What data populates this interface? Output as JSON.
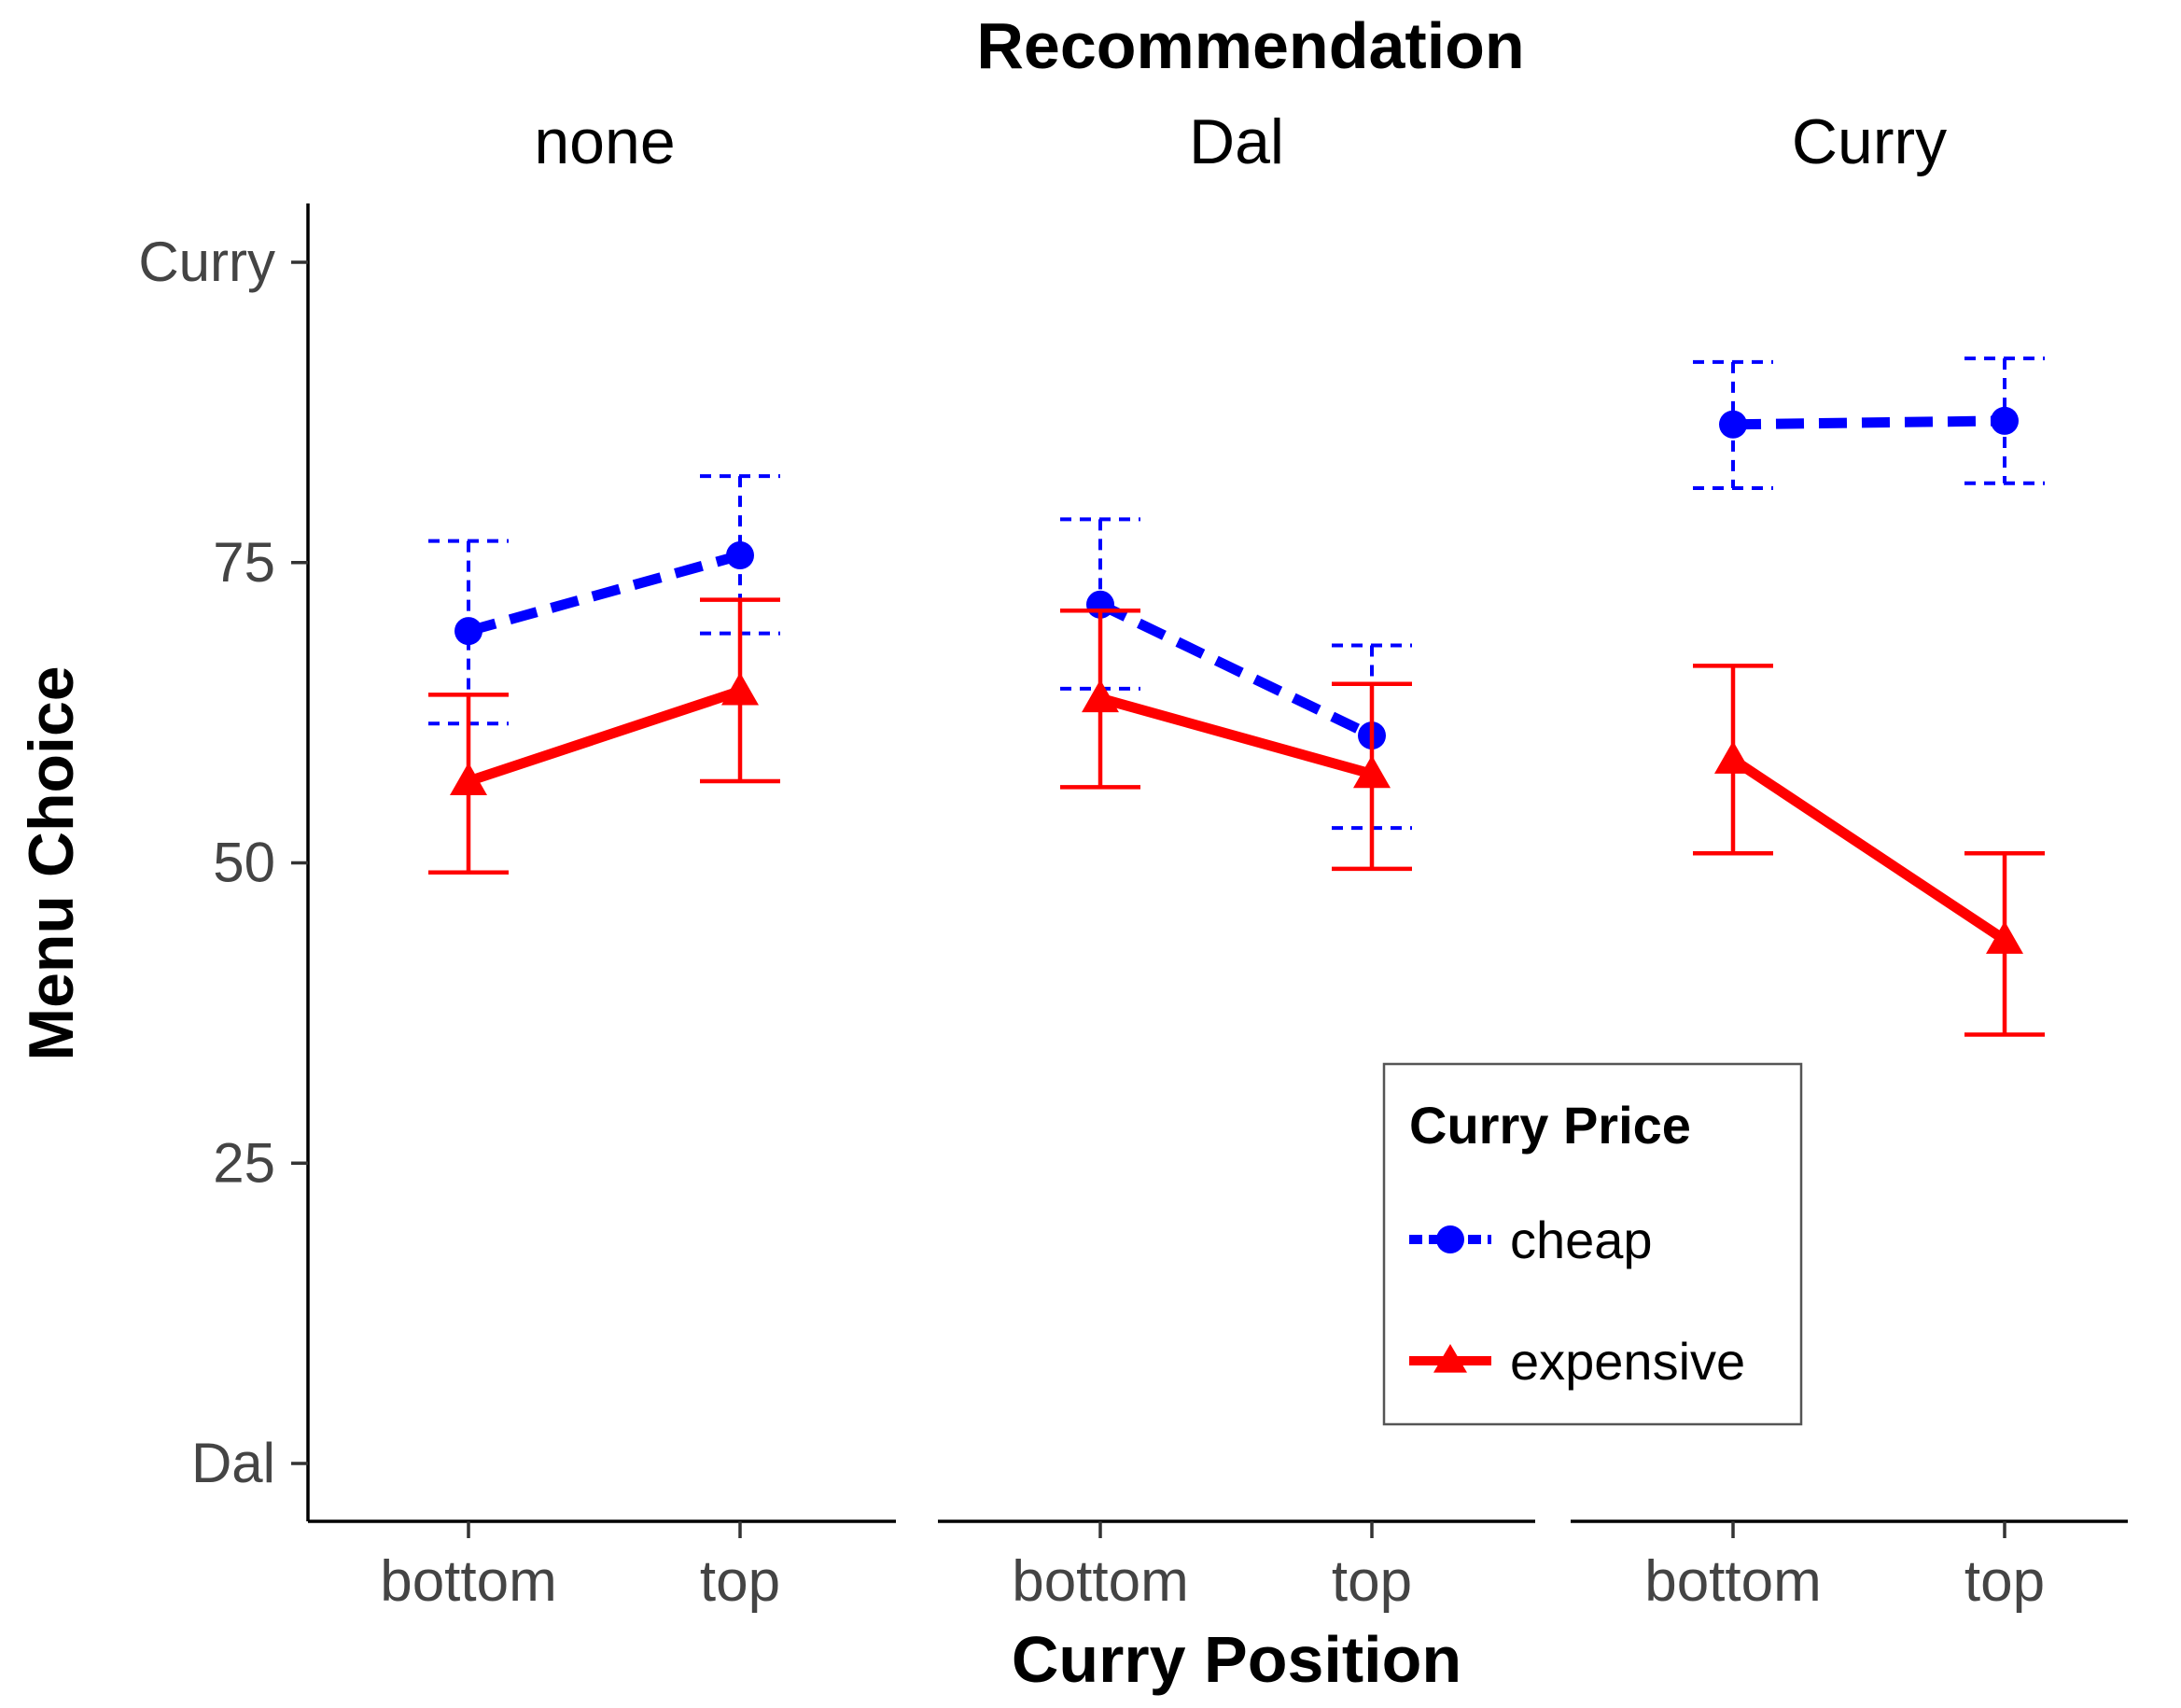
{
  "chart_data": {
    "type": "line",
    "title": "Recommendation",
    "xlabel": "Curry Position",
    "ylabel": "Menu Choice",
    "categories": [
      "bottom",
      "top"
    ],
    "ylim": [
      0,
      100
    ],
    "yticks": [
      {
        "value": 0,
        "label": "Dal"
      },
      {
        "value": 25,
        "label": "25"
      },
      {
        "value": 50,
        "label": "50"
      },
      {
        "value": 75,
        "label": "75"
      },
      {
        "value": 100,
        "label": "Curry"
      }
    ],
    "grid": false,
    "legend": {
      "title": "Curry Price",
      "placement": "inside-bottom-right",
      "entries": [
        {
          "name": "cheap",
          "color": "#0000ff",
          "marker": "circle",
          "linestyle": "dashed"
        },
        {
          "name": "expensive",
          "color": "#ff0000",
          "marker": "triangle",
          "linestyle": "solid"
        }
      ]
    },
    "facets": [
      {
        "label": "none",
        "series": [
          {
            "name": "cheap",
            "values": [
              69.3,
              75.6
            ],
            "lower": [
              61.6,
              69.1
            ],
            "upper": [
              76.8,
              82.2
            ]
          },
          {
            "name": "expensive",
            "values": [
              56.8,
              64.3
            ],
            "lower": [
              49.2,
              56.8
            ],
            "upper": [
              64.0,
              71.9
            ]
          }
        ]
      },
      {
        "label": "Dal",
        "series": [
          {
            "name": "cheap",
            "values": [
              71.5,
              60.6
            ],
            "lower": [
              64.5,
              52.9
            ],
            "upper": [
              78.6,
              68.1
            ]
          },
          {
            "name": "expensive",
            "values": [
              63.7,
              57.4
            ],
            "lower": [
              56.3,
              49.5
            ],
            "upper": [
              71.0,
              64.9
            ]
          }
        ]
      },
      {
        "label": "Curry",
        "series": [
          {
            "name": "cheap",
            "values": [
              86.5,
              86.8
            ],
            "lower": [
              81.2,
              81.6
            ],
            "upper": [
              91.7,
              92.0
            ]
          },
          {
            "name": "expensive",
            "values": [
              58.6,
              43.6
            ],
            "lower": [
              50.8,
              35.7
            ],
            "upper": [
              66.4,
              50.8
            ]
          }
        ]
      }
    ]
  }
}
